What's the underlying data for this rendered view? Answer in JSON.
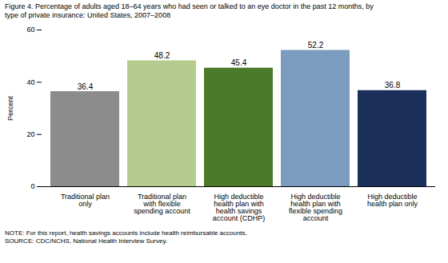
{
  "chart_data": {
    "type": "bar",
    "title": "Figure 4. Percentage of adults aged 18–64 years who had seen or talked to an eye doctor in the past 12 months, by\ntype of private insurance: United States, 2007–2008",
    "categories": [
      "Traditional plan\nonly",
      "Traditional plan\nwith flexible\nspending account",
      "High deductible\nhealth plan with\nhealth savings\naccount (CDHP)",
      "High deductible\nhealth plan with\nflexible spending\naccount",
      "High deductible\nhealth plan only"
    ],
    "values": [
      36.4,
      48.2,
      45.4,
      52.2,
      36.8
    ],
    "colors": [
      "#8c8c8c",
      "#b5cc8e",
      "#4d7a2a",
      "#7b9bbf",
      "#1a2f5a"
    ],
    "ylabel": "Percent",
    "ylim": [
      0,
      60
    ],
    "yticks": [
      0,
      20,
      40,
      60
    ],
    "grid": false,
    "data_labels": true,
    "annotations": [
      "NOTE: For this report, health savings accounts include health reimbursable accounts.",
      "SOURCE: CDC/NCHS, National Health Interview Survey."
    ]
  }
}
